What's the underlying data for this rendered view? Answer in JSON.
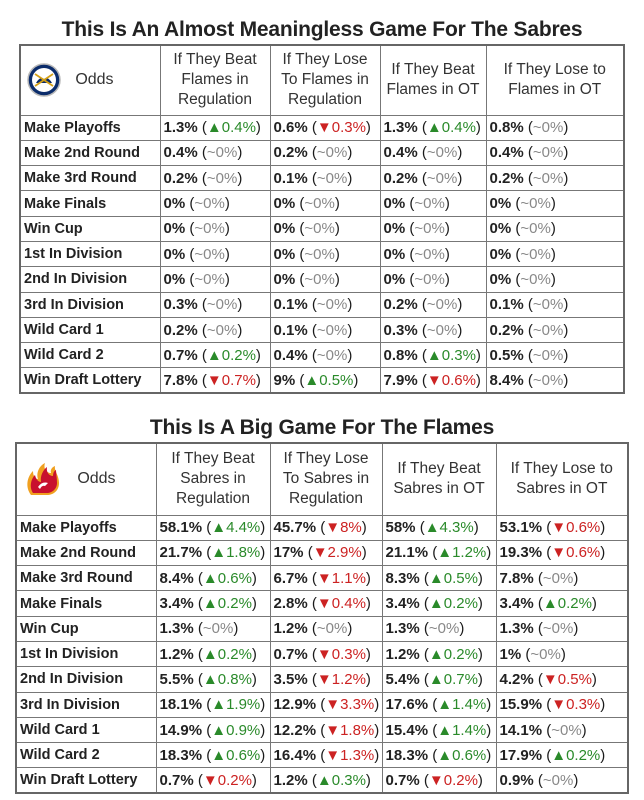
{
  "sabres": {
    "title": "This Is An Almost Meaningless Game For The Sabres",
    "logo_icon": "sabres-logo-icon",
    "odds_label": "Odds",
    "columns": [
      "If They Beat Flames in Regulation",
      "If They Lose To Flames in Regulation",
      "If They Beat Flames in OT",
      "If They Lose to Flames in OT"
    ],
    "rows": [
      {
        "label": "Make Playoffs",
        "cells": [
          {
            "v": "1.3%",
            "c": "▲0.4%",
            "d": "up"
          },
          {
            "v": "0.6%",
            "c": "▼0.3%",
            "d": "down"
          },
          {
            "v": "1.3%",
            "c": "▲0.4%",
            "d": "up"
          },
          {
            "v": "0.8%",
            "c": "~0%",
            "d": "flat"
          }
        ]
      },
      {
        "label": "Make 2nd Round",
        "cells": [
          {
            "v": "0.4%",
            "c": "~0%",
            "d": "flat"
          },
          {
            "v": "0.2%",
            "c": "~0%",
            "d": "flat"
          },
          {
            "v": "0.4%",
            "c": "~0%",
            "d": "flat"
          },
          {
            "v": "0.4%",
            "c": "~0%",
            "d": "flat"
          }
        ]
      },
      {
        "label": "Make 3rd Round",
        "cells": [
          {
            "v": "0.2%",
            "c": "~0%",
            "d": "flat"
          },
          {
            "v": "0.1%",
            "c": "~0%",
            "d": "flat"
          },
          {
            "v": "0.2%",
            "c": "~0%",
            "d": "flat"
          },
          {
            "v": "0.2%",
            "c": "~0%",
            "d": "flat"
          }
        ]
      },
      {
        "label": "Make Finals",
        "cells": [
          {
            "v": "0%",
            "c": "~0%",
            "d": "flat"
          },
          {
            "v": "0%",
            "c": "~0%",
            "d": "flat"
          },
          {
            "v": "0%",
            "c": "~0%",
            "d": "flat"
          },
          {
            "v": "0%",
            "c": "~0%",
            "d": "flat"
          }
        ]
      },
      {
        "label": "Win Cup",
        "cells": [
          {
            "v": "0%",
            "c": "~0%",
            "d": "flat"
          },
          {
            "v": "0%",
            "c": "~0%",
            "d": "flat"
          },
          {
            "v": "0%",
            "c": "~0%",
            "d": "flat"
          },
          {
            "v": "0%",
            "c": "~0%",
            "d": "flat"
          }
        ]
      },
      {
        "label": "1st In Division",
        "cells": [
          {
            "v": "0%",
            "c": "~0%",
            "d": "flat"
          },
          {
            "v": "0%",
            "c": "~0%",
            "d": "flat"
          },
          {
            "v": "0%",
            "c": "~0%",
            "d": "flat"
          },
          {
            "v": "0%",
            "c": "~0%",
            "d": "flat"
          }
        ]
      },
      {
        "label": "2nd In Division",
        "cells": [
          {
            "v": "0%",
            "c": "~0%",
            "d": "flat"
          },
          {
            "v": "0%",
            "c": "~0%",
            "d": "flat"
          },
          {
            "v": "0%",
            "c": "~0%",
            "d": "flat"
          },
          {
            "v": "0%",
            "c": "~0%",
            "d": "flat"
          }
        ]
      },
      {
        "label": "3rd In Division",
        "cells": [
          {
            "v": "0.3%",
            "c": "~0%",
            "d": "flat"
          },
          {
            "v": "0.1%",
            "c": "~0%",
            "d": "flat"
          },
          {
            "v": "0.2%",
            "c": "~0%",
            "d": "flat"
          },
          {
            "v": "0.1%",
            "c": "~0%",
            "d": "flat"
          }
        ]
      },
      {
        "label": "Wild Card 1",
        "cells": [
          {
            "v": "0.2%",
            "c": "~0%",
            "d": "flat"
          },
          {
            "v": "0.1%",
            "c": "~0%",
            "d": "flat"
          },
          {
            "v": "0.3%",
            "c": "~0%",
            "d": "flat"
          },
          {
            "v": "0.2%",
            "c": "~0%",
            "d": "flat"
          }
        ]
      },
      {
        "label": "Wild Card 2",
        "cells": [
          {
            "v": "0.7%",
            "c": "▲0.2%",
            "d": "up"
          },
          {
            "v": "0.4%",
            "c": "~0%",
            "d": "flat"
          },
          {
            "v": "0.8%",
            "c": "▲0.3%",
            "d": "up"
          },
          {
            "v": "0.5%",
            "c": "~0%",
            "d": "flat"
          }
        ]
      },
      {
        "label": "Win Draft Lottery",
        "cells": [
          {
            "v": "7.8%",
            "c": "▼0.7%",
            "d": "down"
          },
          {
            "v": "9%",
            "c": "▲0.5%",
            "d": "up"
          },
          {
            "v": "7.9%",
            "c": "▼0.6%",
            "d": "down"
          },
          {
            "v": "8.4%",
            "c": "~0%",
            "d": "flat"
          }
        ]
      }
    ]
  },
  "flames": {
    "title": "This Is A Big Game For The Flames",
    "logo_icon": "flames-logo-icon",
    "odds_label": "Odds",
    "columns": [
      "If They Beat Sabres in Regulation",
      "If They Lose To Sabres in Regulation",
      "If They Beat Sabres in OT",
      "If They Lose to Sabres in OT"
    ],
    "rows": [
      {
        "label": "Make Playoffs",
        "cells": [
          {
            "v": "58.1%",
            "c": "▲4.4%",
            "d": "up"
          },
          {
            "v": "45.7%",
            "c": "▼8%",
            "d": "down"
          },
          {
            "v": "58%",
            "c": "▲4.3%",
            "d": "up"
          },
          {
            "v": "53.1%",
            "c": "▼0.6%",
            "d": "down"
          }
        ]
      },
      {
        "label": "Make 2nd Round",
        "cells": [
          {
            "v": "21.7%",
            "c": "▲1.8%",
            "d": "up"
          },
          {
            "v": "17%",
            "c": "▼2.9%",
            "d": "down"
          },
          {
            "v": "21.1%",
            "c": "▲1.2%",
            "d": "up"
          },
          {
            "v": "19.3%",
            "c": "▼0.6%",
            "d": "down"
          }
        ]
      },
      {
        "label": "Make 3rd Round",
        "cells": [
          {
            "v": "8.4%",
            "c": "▲0.6%",
            "d": "up"
          },
          {
            "v": "6.7%",
            "c": "▼1.1%",
            "d": "down"
          },
          {
            "v": "8.3%",
            "c": "▲0.5%",
            "d": "up"
          },
          {
            "v": "7.8%",
            "c": "~0%",
            "d": "flat"
          }
        ]
      },
      {
        "label": "Make Finals",
        "cells": [
          {
            "v": "3.4%",
            "c": "▲0.2%",
            "d": "up"
          },
          {
            "v": "2.8%",
            "c": "▼0.4%",
            "d": "down"
          },
          {
            "v": "3.4%",
            "c": "▲0.2%",
            "d": "up"
          },
          {
            "v": "3.4%",
            "c": "▲0.2%",
            "d": "up"
          }
        ]
      },
      {
        "label": "Win Cup",
        "cells": [
          {
            "v": "1.3%",
            "c": "~0%",
            "d": "flat"
          },
          {
            "v": "1.2%",
            "c": "~0%",
            "d": "flat"
          },
          {
            "v": "1.3%",
            "c": "~0%",
            "d": "flat"
          },
          {
            "v": "1.3%",
            "c": "~0%",
            "d": "flat"
          }
        ]
      },
      {
        "label": "1st In Division",
        "cells": [
          {
            "v": "1.2%",
            "c": "▲0.2%",
            "d": "up"
          },
          {
            "v": "0.7%",
            "c": "▼0.3%",
            "d": "down"
          },
          {
            "v": "1.2%",
            "c": "▲0.2%",
            "d": "up"
          },
          {
            "v": "1%",
            "c": "~0%",
            "d": "flat"
          }
        ]
      },
      {
        "label": "2nd In Division",
        "cells": [
          {
            "v": "5.5%",
            "c": "▲0.8%",
            "d": "up"
          },
          {
            "v": "3.5%",
            "c": "▼1.2%",
            "d": "down"
          },
          {
            "v": "5.4%",
            "c": "▲0.7%",
            "d": "up"
          },
          {
            "v": "4.2%",
            "c": "▼0.5%",
            "d": "down"
          }
        ]
      },
      {
        "label": "3rd In Division",
        "cells": [
          {
            "v": "18.1%",
            "c": "▲1.9%",
            "d": "up"
          },
          {
            "v": "12.9%",
            "c": "▼3.3%",
            "d": "down"
          },
          {
            "v": "17.6%",
            "c": "▲1.4%",
            "d": "up"
          },
          {
            "v": "15.9%",
            "c": "▼0.3%",
            "d": "down"
          }
        ]
      },
      {
        "label": "Wild Card 1",
        "cells": [
          {
            "v": "14.9%",
            "c": "▲0.9%",
            "d": "up"
          },
          {
            "v": "12.2%",
            "c": "▼1.8%",
            "d": "down"
          },
          {
            "v": "15.4%",
            "c": "▲1.4%",
            "d": "up"
          },
          {
            "v": "14.1%",
            "c": "~0%",
            "d": "flat"
          }
        ]
      },
      {
        "label": "Wild Card 2",
        "cells": [
          {
            "v": "18.3%",
            "c": "▲0.6%",
            "d": "up"
          },
          {
            "v": "16.4%",
            "c": "▼1.3%",
            "d": "down"
          },
          {
            "v": "18.3%",
            "c": "▲0.6%",
            "d": "up"
          },
          {
            "v": "17.9%",
            "c": "▲0.2%",
            "d": "up"
          }
        ]
      },
      {
        "label": "Win Draft Lottery",
        "cells": [
          {
            "v": "0.7%",
            "c": "▼0.2%",
            "d": "down"
          },
          {
            "v": "1.2%",
            "c": "▲0.3%",
            "d": "up"
          },
          {
            "v": "0.7%",
            "c": "▼0.2%",
            "d": "down"
          },
          {
            "v": "0.9%",
            "c": "~0%",
            "d": "flat"
          }
        ]
      }
    ]
  },
  "colors": {
    "up": "#2a8a2a",
    "down": "#cc2222",
    "flat": "#888888"
  }
}
